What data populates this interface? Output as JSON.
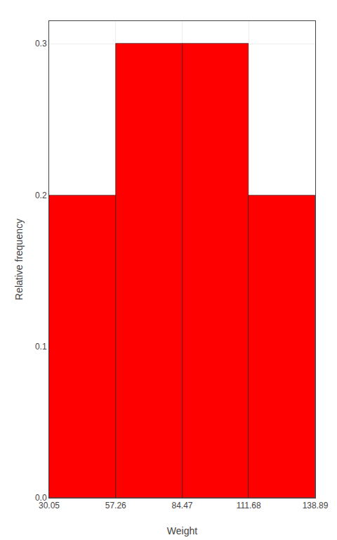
{
  "chart_data": {
    "type": "histogram",
    "bins": [
      30.05,
      57.26,
      84.47,
      111.68,
      138.89
    ],
    "values": [
      0.2,
      0.3,
      0.3,
      0.2
    ],
    "color": "#FF0000",
    "x_label": "Weight",
    "y_label": "Relative frequency",
    "xlim": [
      30.05,
      138.89
    ],
    "ylim": [
      0.0,
      0.315
    ],
    "xticks": [
      30.05,
      57.26,
      84.47,
      111.68,
      138.89
    ],
    "yticks": [
      {
        "value": 0.0,
        "label": "0.0"
      },
      0.1,
      0.2,
      0.3
    ],
    "grid": true
  }
}
